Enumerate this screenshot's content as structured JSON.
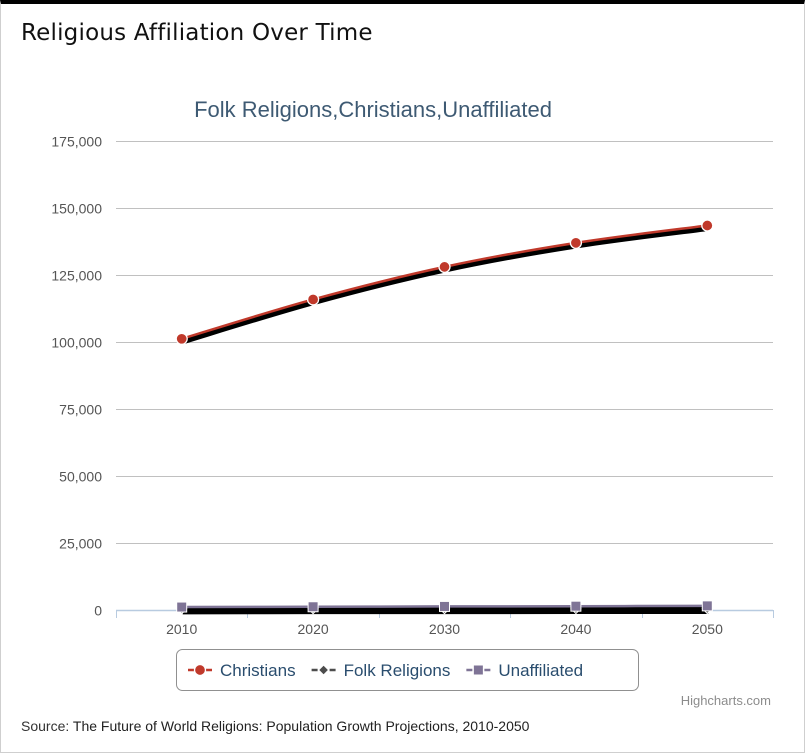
{
  "page": {
    "heading": "Religious Affiliation Over Time",
    "source_label": "Source:",
    "source_text": "The Future of World Religions: Population Growth Projections, 2010-2050",
    "credits": "Highcharts.com"
  },
  "chart_data": {
    "type": "line",
    "title": "Folk Religions,Christians,Unaffiliated",
    "x": [
      "2010",
      "2020",
      "2030",
      "2040",
      "2050"
    ],
    "ylim": [
      0,
      175000
    ],
    "yticks": [
      0,
      25000,
      50000,
      75000,
      100000,
      125000,
      150000,
      175000
    ],
    "ytick_labels": [
      "0",
      "25,000",
      "50,000",
      "75,000",
      "100,000",
      "125,000",
      "150,000",
      "175,000"
    ],
    "grid": true,
    "legend_position": "bottom-center",
    "series": [
      {
        "name": "Christians",
        "color": "#c0392b",
        "marker": "circle",
        "values": [
          101190,
          115880,
          128030,
          136990,
          143470
        ]
      },
      {
        "name": "Folk Religions",
        "color": "#4d4d4d",
        "marker": "diamond",
        "values": [
          440,
          500,
          520,
          540,
          560
        ]
      },
      {
        "name": "Unaffiliated",
        "color": "#7f7496",
        "marker": "square",
        "values": [
          1100,
          1210,
          1330,
          1420,
          1540
        ]
      }
    ]
  }
}
